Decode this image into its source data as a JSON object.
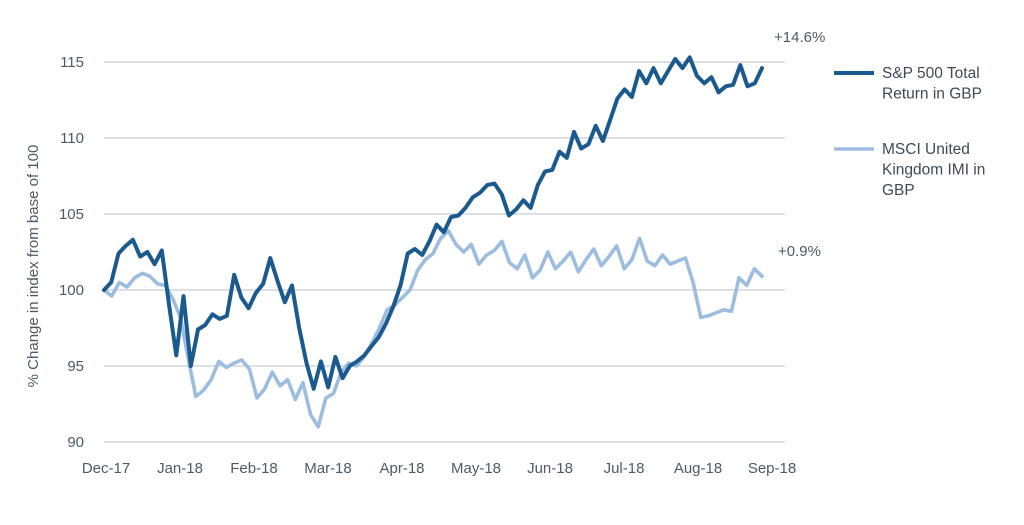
{
  "chart_data": {
    "type": "line",
    "title": "",
    "xlabel": "",
    "ylabel": "% Change in index from base of 100",
    "ylim": [
      90,
      115
    ],
    "yticks": [
      90,
      95,
      100,
      105,
      110,
      115
    ],
    "grid": "horizontal",
    "legend_position": "right",
    "x_ticks": [
      "Dec-17",
      "Jan-18",
      "Feb-18",
      "Mar-18",
      "Apr-18",
      "May-18",
      "Jun-18",
      "Jul-18",
      "Aug-18",
      "Sep-18"
    ],
    "x_range": [
      "Dec-17",
      "Sep-18"
    ],
    "series": [
      {
        "name": "S&P 500 Total Return in GBP",
        "legend_lines": [
          "S&P 500 Total",
          "Return in GBP"
        ],
        "color": "#1a5a8e",
        "end_label": "+14.6%",
        "points": [
          [
            "Dec-17",
            100.0
          ],
          [
            "Dec-17",
            100.5
          ],
          [
            "Dec-17",
            102.4
          ],
          [
            "Dec-17",
            102.9
          ],
          [
            "Dec-17",
            103.3
          ],
          [
            "Dec-17",
            102.2
          ],
          [
            "Dec-17",
            102.5
          ],
          [
            "Dec-17",
            101.7
          ],
          [
            "Dec-17",
            102.6
          ],
          [
            "Jan-18",
            99.0
          ],
          [
            "Jan-18",
            95.7
          ],
          [
            "Jan-18",
            99.6
          ],
          [
            "Jan-18",
            95.0
          ],
          [
            "Jan-18",
            97.4
          ],
          [
            "Jan-18",
            97.7
          ],
          [
            "Jan-18",
            98.4
          ],
          [
            "Jan-18",
            98.1
          ],
          [
            "Jan-18",
            98.3
          ],
          [
            "Jan-18",
            101.0
          ],
          [
            "Jan-18",
            99.5
          ],
          [
            "Jan-18",
            98.8
          ],
          [
            "Feb-18",
            99.8
          ],
          [
            "Feb-18",
            100.4
          ],
          [
            "Feb-18",
            102.1
          ],
          [
            "Feb-18",
            100.6
          ],
          [
            "Feb-18",
            99.2
          ],
          [
            "Feb-18",
            100.3
          ],
          [
            "Feb-18",
            97.5
          ],
          [
            "Feb-18",
            95.2
          ],
          [
            "Feb-18",
            93.5
          ],
          [
            "Mar-18",
            95.3
          ],
          [
            "Mar-18",
            93.6
          ],
          [
            "Mar-18",
            95.6
          ],
          [
            "Mar-18",
            94.2
          ],
          [
            "Mar-18",
            95.0
          ],
          [
            "Mar-18",
            95.3
          ],
          [
            "Mar-18",
            95.7
          ],
          [
            "Mar-18",
            96.3
          ],
          [
            "Mar-18",
            96.9
          ],
          [
            "Mar-18",
            97.8
          ],
          [
            "Apr-18",
            98.9
          ],
          [
            "Apr-18",
            100.3
          ],
          [
            "Apr-18",
            102.4
          ],
          [
            "Apr-18",
            102.7
          ],
          [
            "Apr-18",
            102.3
          ],
          [
            "Apr-18",
            103.2
          ],
          [
            "Apr-18",
            104.3
          ],
          [
            "Apr-18",
            103.8
          ],
          [
            "Apr-18",
            104.8
          ],
          [
            "May-18",
            104.9
          ],
          [
            "May-18",
            105.4
          ],
          [
            "May-18",
            106.1
          ],
          [
            "May-18",
            106.4
          ],
          [
            "May-18",
            106.9
          ],
          [
            "May-18",
            107.0
          ],
          [
            "May-18",
            106.3
          ],
          [
            "May-18",
            104.9
          ],
          [
            "Jun-18",
            105.3
          ],
          [
            "Jun-18",
            105.9
          ],
          [
            "Jun-18",
            105.4
          ],
          [
            "Jun-18",
            106.9
          ],
          [
            "Jun-18",
            107.8
          ],
          [
            "Jun-18",
            107.9
          ],
          [
            "Jun-18",
            109.1
          ],
          [
            "Jun-18",
            108.7
          ],
          [
            "Jun-18",
            110.4
          ],
          [
            "Jun-18",
            109.3
          ],
          [
            "Jun-18",
            109.6
          ],
          [
            "Jun-18",
            110.8
          ],
          [
            "Jun-18",
            109.8
          ],
          [
            "Jul-18",
            111.2
          ],
          [
            "Jul-18",
            112.6
          ],
          [
            "Jul-18",
            113.2
          ],
          [
            "Jul-18",
            112.7
          ],
          [
            "Jul-18",
            114.4
          ],
          [
            "Jul-18",
            113.6
          ],
          [
            "Jul-18",
            114.6
          ],
          [
            "Jul-18",
            113.6
          ],
          [
            "Jul-18",
            114.4
          ],
          [
            "Jul-18",
            115.2
          ],
          [
            "Aug-18",
            114.6
          ],
          [
            "Aug-18",
            115.3
          ],
          [
            "Aug-18",
            114.1
          ],
          [
            "Aug-18",
            113.6
          ],
          [
            "Aug-18",
            114.0
          ],
          [
            "Aug-18",
            113.0
          ],
          [
            "Aug-18",
            113.4
          ],
          [
            "Aug-18",
            113.5
          ],
          [
            "Aug-18",
            114.8
          ],
          [
            "Aug-18",
            113.4
          ],
          [
            "Aug-18",
            113.6
          ],
          [
            "Aug-18",
            114.6
          ]
        ]
      },
      {
        "name": "MSCI United Kingdom IMI in GBP",
        "legend_lines": [
          "MSCI United",
          "Kingdom IMI in",
          "GBP"
        ],
        "color": "#9dbde0",
        "end_label": "+0.9%",
        "points": [
          [
            "Dec-17",
            100.0
          ],
          [
            "Dec-17",
            99.6
          ],
          [
            "Dec-17",
            100.5
          ],
          [
            "Dec-17",
            100.2
          ],
          [
            "Dec-17",
            100.8
          ],
          [
            "Dec-17",
            101.1
          ],
          [
            "Dec-17",
            100.9
          ],
          [
            "Dec-17",
            100.4
          ],
          [
            "Dec-17",
            100.3
          ],
          [
            "Jan-18",
            99.4
          ],
          [
            "Jan-18",
            98.2
          ],
          [
            "Jan-18",
            95.5
          ],
          [
            "Jan-18",
            93.0
          ],
          [
            "Jan-18",
            93.4
          ],
          [
            "Jan-18",
            94.1
          ],
          [
            "Jan-18",
            95.3
          ],
          [
            "Jan-18",
            94.9
          ],
          [
            "Jan-18",
            95.2
          ],
          [
            "Jan-18",
            95.4
          ],
          [
            "Jan-18",
            94.8
          ],
          [
            "Feb-18",
            92.9
          ],
          [
            "Feb-18",
            93.5
          ],
          [
            "Feb-18",
            94.6
          ],
          [
            "Feb-18",
            93.7
          ],
          [
            "Feb-18",
            94.1
          ],
          [
            "Feb-18",
            92.8
          ],
          [
            "Feb-18",
            93.9
          ],
          [
            "Feb-18",
            91.8
          ],
          [
            "Mar-18",
            91.0
          ],
          [
            "Mar-18",
            92.9
          ],
          [
            "Mar-18",
            93.2
          ],
          [
            "Mar-18",
            94.6
          ],
          [
            "Mar-18",
            95.2
          ],
          [
            "Mar-18",
            95.0
          ],
          [
            "Mar-18",
            95.6
          ],
          [
            "Mar-18",
            96.5
          ],
          [
            "Mar-18",
            97.5
          ],
          [
            "Mar-18",
            98.7
          ],
          [
            "Apr-18",
            99.0
          ],
          [
            "Apr-18",
            99.5
          ],
          [
            "Apr-18",
            100.0
          ],
          [
            "Apr-18",
            101.3
          ],
          [
            "Apr-18",
            102.0
          ],
          [
            "Apr-18",
            102.4
          ],
          [
            "Apr-18",
            103.4
          ],
          [
            "Apr-18",
            103.9
          ],
          [
            "Apr-18",
            103.0
          ],
          [
            "May-18",
            102.5
          ],
          [
            "May-18",
            103.0
          ],
          [
            "May-18",
            101.7
          ],
          [
            "May-18",
            102.3
          ],
          [
            "May-18",
            102.6
          ],
          [
            "May-18",
            103.2
          ],
          [
            "May-18",
            101.8
          ],
          [
            "May-18",
            101.4
          ],
          [
            "Jun-18",
            102.3
          ],
          [
            "Jun-18",
            100.8
          ],
          [
            "Jun-18",
            101.3
          ],
          [
            "Jun-18",
            102.5
          ],
          [
            "Jun-18",
            101.4
          ],
          [
            "Jun-18",
            101.9
          ],
          [
            "Jun-18",
            102.5
          ],
          [
            "Jun-18",
            101.2
          ],
          [
            "Jun-18",
            102.0
          ],
          [
            "Jun-18",
            102.7
          ],
          [
            "Jun-18",
            101.6
          ],
          [
            "Jul-18",
            102.2
          ],
          [
            "Jul-18",
            102.9
          ],
          [
            "Jul-18",
            101.4
          ],
          [
            "Jul-18",
            102.0
          ],
          [
            "Jul-18",
            103.4
          ],
          [
            "Jul-18",
            101.9
          ],
          [
            "Jul-18",
            101.6
          ],
          [
            "Jul-18",
            102.3
          ],
          [
            "Jul-18",
            101.7
          ],
          [
            "Jul-18",
            101.9
          ],
          [
            "Aug-18",
            102.1
          ],
          [
            "Aug-18",
            100.5
          ],
          [
            "Aug-18",
            98.2
          ],
          [
            "Aug-18",
            98.3
          ],
          [
            "Aug-18",
            98.5
          ],
          [
            "Aug-18",
            98.7
          ],
          [
            "Aug-18",
            98.6
          ],
          [
            "Aug-18",
            100.8
          ],
          [
            "Aug-18",
            100.3
          ],
          [
            "Aug-18",
            101.4
          ],
          [
            "Aug-18",
            100.9
          ]
        ]
      }
    ]
  }
}
